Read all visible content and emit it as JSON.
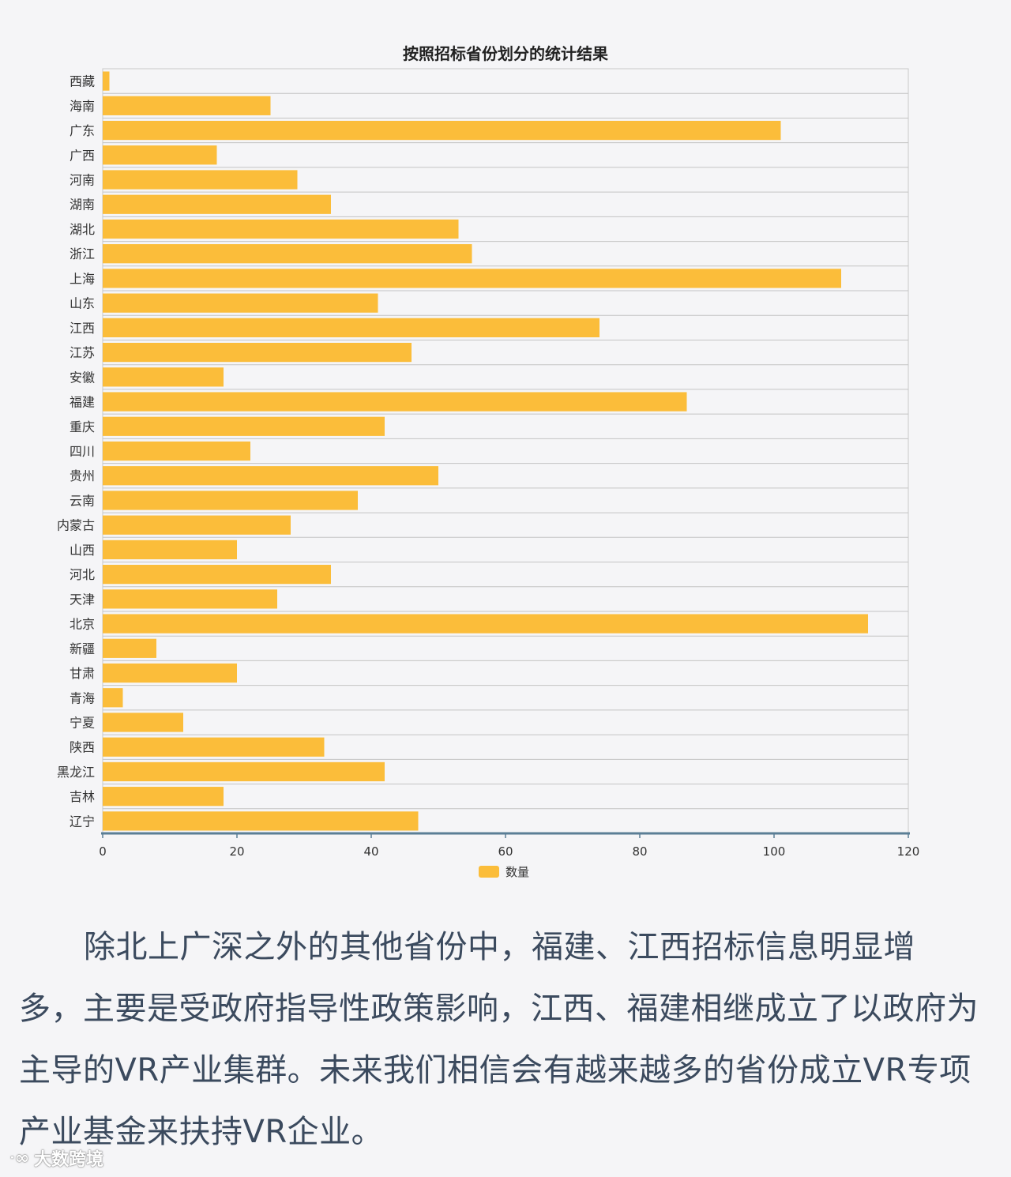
{
  "chart_data": {
    "type": "bar",
    "orientation": "horizontal",
    "title": "按照招标省份划分的统计结果",
    "categories": [
      "西藏",
      "海南",
      "广东",
      "广西",
      "河南",
      "湖南",
      "湖北",
      "浙江",
      "上海",
      "山东",
      "江西",
      "江苏",
      "安徽",
      "福建",
      "重庆",
      "四川",
      "贵州",
      "云南",
      "内蒙古",
      "山西",
      "河北",
      "天津",
      "北京",
      "新疆",
      "甘肃",
      "青海",
      "宁夏",
      "陕西",
      "黑龙江",
      "吉林",
      "辽宁"
    ],
    "series": [
      {
        "name": "数量",
        "values": [
          1,
          25,
          101,
          17,
          29,
          34,
          53,
          55,
          110,
          41,
          74,
          46,
          18,
          87,
          42,
          22,
          50,
          38,
          28,
          20,
          34,
          26,
          114,
          8,
          20,
          3,
          12,
          33,
          42,
          18,
          47
        ]
      }
    ],
    "xlim": [
      0,
      120
    ],
    "x_ticks": [
      0,
      20,
      40,
      60,
      80,
      100,
      120
    ],
    "xlabel": "",
    "ylabel": "",
    "grid": true,
    "legend_position": "bottom",
    "bar_color": "#fbbd3a"
  },
  "article": {
    "paragraph": "除北上广深之外的其他省份中，福建、江西招标信息明显增多，主要是受政府指导性政策影响，江西、福建相继成立了以政府为主导的VR产业集群。未来我们相信会有越来越多的省份成立VR专项产业基金来扶持VR企业。"
  },
  "watermark": {
    "icon": "weibo-icon",
    "text": "大数跨境"
  }
}
